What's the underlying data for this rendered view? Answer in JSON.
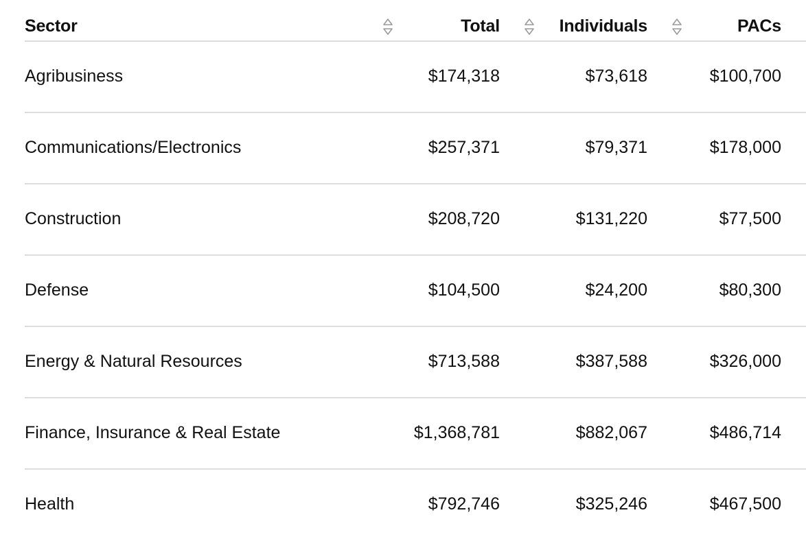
{
  "table": {
    "columns": [
      {
        "key": "sector",
        "label": "Sector",
        "sortable": true
      },
      {
        "key": "total",
        "label": "Total",
        "sortable": true
      },
      {
        "key": "individuals",
        "label": "Individuals",
        "sortable": true
      },
      {
        "key": "pacs",
        "label": "PACs",
        "sortable": false
      }
    ],
    "rows": [
      {
        "sector": "Agribusiness",
        "total": "$174,318",
        "individuals": "$73,618",
        "pacs": "$100,700"
      },
      {
        "sector": "Communications/Electronics",
        "total": "$257,371",
        "individuals": "$79,371",
        "pacs": "$178,000"
      },
      {
        "sector": "Construction",
        "total": "$208,720",
        "individuals": "$131,220",
        "pacs": "$77,500"
      },
      {
        "sector": "Defense",
        "total": "$104,500",
        "individuals": "$24,200",
        "pacs": "$80,300"
      },
      {
        "sector": "Energy & Natural Resources",
        "total": "$713,588",
        "individuals": "$387,588",
        "pacs": "$326,000"
      },
      {
        "sector": "Finance, Insurance & Real Estate",
        "total": "$1,368,781",
        "individuals": "$882,067",
        "pacs": "$486,714"
      },
      {
        "sector": "Health",
        "total": "$792,746",
        "individuals": "$325,246",
        "pacs": "$467,500"
      }
    ]
  },
  "icons": {
    "sort": "sort-updown-icon"
  },
  "colors": {
    "text": "#111111",
    "divider": "#dddddd",
    "sort_icon": "#9a9a9a",
    "background": "#ffffff"
  }
}
